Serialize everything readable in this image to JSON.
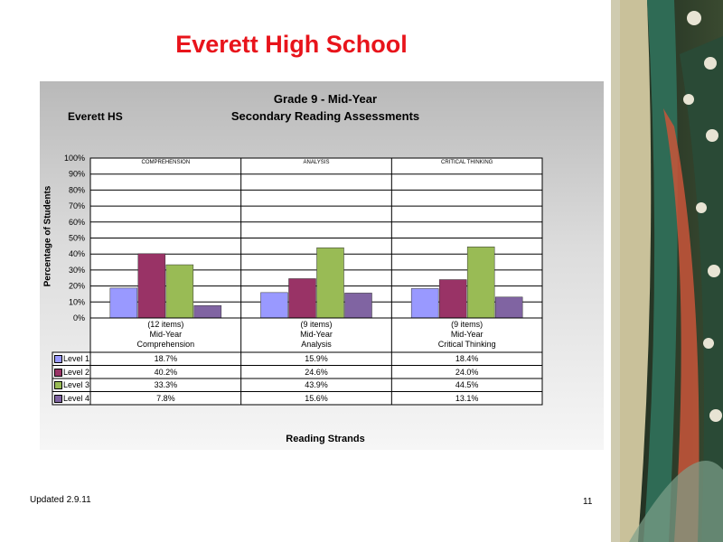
{
  "slide": {
    "title": "Everett High School",
    "updated": "Updated  2.9.11",
    "page_number": "11"
  },
  "colors": {
    "title": "#e8141b",
    "level1": "#9999ff",
    "level2": "#993366",
    "level3": "#99bb55",
    "level4": "#8064a2"
  },
  "chart_data": {
    "type": "bar",
    "org_label": "Everett HS",
    "title": "Grade 9 - Mid-Year",
    "subtitle": "Secondary Reading Assessments",
    "ylabel": "Percentage of Students",
    "xlabel": "Reading Strands",
    "ylim": [
      0,
      100
    ],
    "yticks": [
      "0%",
      "10%",
      "20%",
      "30%",
      "40%",
      "50%",
      "60%",
      "70%",
      "80%",
      "90%",
      "100%"
    ],
    "grid": true,
    "panel_labels": [
      "COMPREHENSION",
      "ANALYSIS",
      "CRITICAL THINKING"
    ],
    "categories": [
      {
        "line1": "(12 items)",
        "line2": "Mid-Year",
        "line3": "Comprehension"
      },
      {
        "line1": "(9 items)",
        "line2": "Mid-Year",
        "line3": "Analysis"
      },
      {
        "line1": "(9 items)",
        "line2": "Mid-Year",
        "line3": "Critical Thinking"
      }
    ],
    "series": [
      {
        "name": "Level 1",
        "values": [
          18.7,
          15.9,
          18.4
        ],
        "labels": [
          "18.7%",
          "15.9%",
          "18.4%"
        ]
      },
      {
        "name": "Level 2",
        "values": [
          40.2,
          24.6,
          24.0
        ],
        "labels": [
          "40.2%",
          "24.6%",
          "24.0%"
        ]
      },
      {
        "name": "Level 3",
        "values": [
          33.3,
          43.9,
          44.5
        ],
        "labels": [
          "33.3%",
          "43.9%",
          "44.5%"
        ]
      },
      {
        "name": "Level 4",
        "values": [
          7.8,
          15.6,
          13.1
        ],
        "labels": [
          "7.8%",
          "15.6%",
          "13.1%"
        ]
      }
    ]
  }
}
